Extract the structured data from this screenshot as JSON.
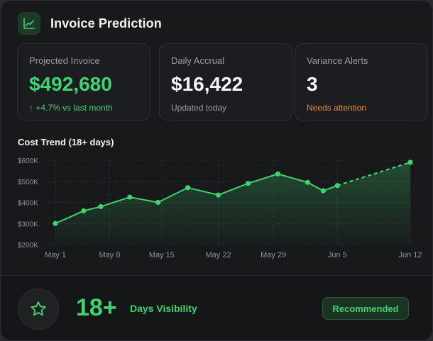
{
  "header": {
    "title": "Invoice Prediction",
    "icon": "line-chart-icon"
  },
  "metrics": [
    {
      "label": "Projected Invoice",
      "value": "$492,680",
      "sub": "↑ +4.7% vs last month",
      "value_color": "#3ed46f",
      "sub_color": "#3ed46f"
    },
    {
      "label": "Daily Accrual",
      "value": "$16,422",
      "sub": "Updated today",
      "value_color": "#f5f6f7",
      "sub_color": "#9a9ea6"
    },
    {
      "label": "Variance Alerts",
      "value": "3",
      "sub": "Needs attention",
      "value_color": "#f5f6f7",
      "sub_color": "#f08a2a"
    }
  ],
  "chart": {
    "title": "Cost Trend (18+ days)"
  },
  "chart_data": {
    "type": "line",
    "x": [
      "May 1",
      "May 4",
      "May 6",
      "May 10",
      "May 14",
      "May 18",
      "May 22",
      "May 26",
      "May 30",
      "Jun 2",
      "Jun 4",
      "Jun 5",
      "Jun 12"
    ],
    "series": [
      {
        "values": [
          300,
          360,
          380,
          425,
          400,
          470,
          435,
          490,
          535,
          495,
          455,
          480,
          null
        ],
        "style": "solid"
      },
      {
        "values": [
          null,
          null,
          null,
          null,
          null,
          null,
          null,
          null,
          null,
          null,
          null,
          480,
          590
        ],
        "style": "dashed"
      }
    ],
    "x_numeric": [
      0,
      3.8,
      6.1,
      10,
      13.8,
      17.8,
      21.9,
      25.9,
      29.9,
      33.9,
      36.0,
      37.9,
      47.7
    ],
    "xticks": [
      {
        "label": "May 1",
        "day": 0
      },
      {
        "label": "May 8",
        "day": 7.3
      },
      {
        "label": "May 15",
        "day": 14.3
      },
      {
        "label": "May 22",
        "day": 21.9
      },
      {
        "label": "May 29",
        "day": 29.3
      },
      {
        "label": "Jun 5",
        "day": 37.9
      },
      {
        "label": "Jun 12",
        "day": 47.7
      }
    ],
    "yticks": [
      {
        "label": "$600K",
        "value": 600
      },
      {
        "label": "$500K",
        "value": 500
      },
      {
        "label": "$400K",
        "value": 400
      },
      {
        "label": "$300K",
        "value": 300
      },
      {
        "label": "$200K",
        "value": 200
      }
    ],
    "ylim": [
      200,
      600
    ],
    "grid": true,
    "line_color": "#3ed46f"
  },
  "footer": {
    "big_number": "18+",
    "big_label": "Days Visibility",
    "button_label": "Recommended",
    "icon": "star-icon"
  }
}
